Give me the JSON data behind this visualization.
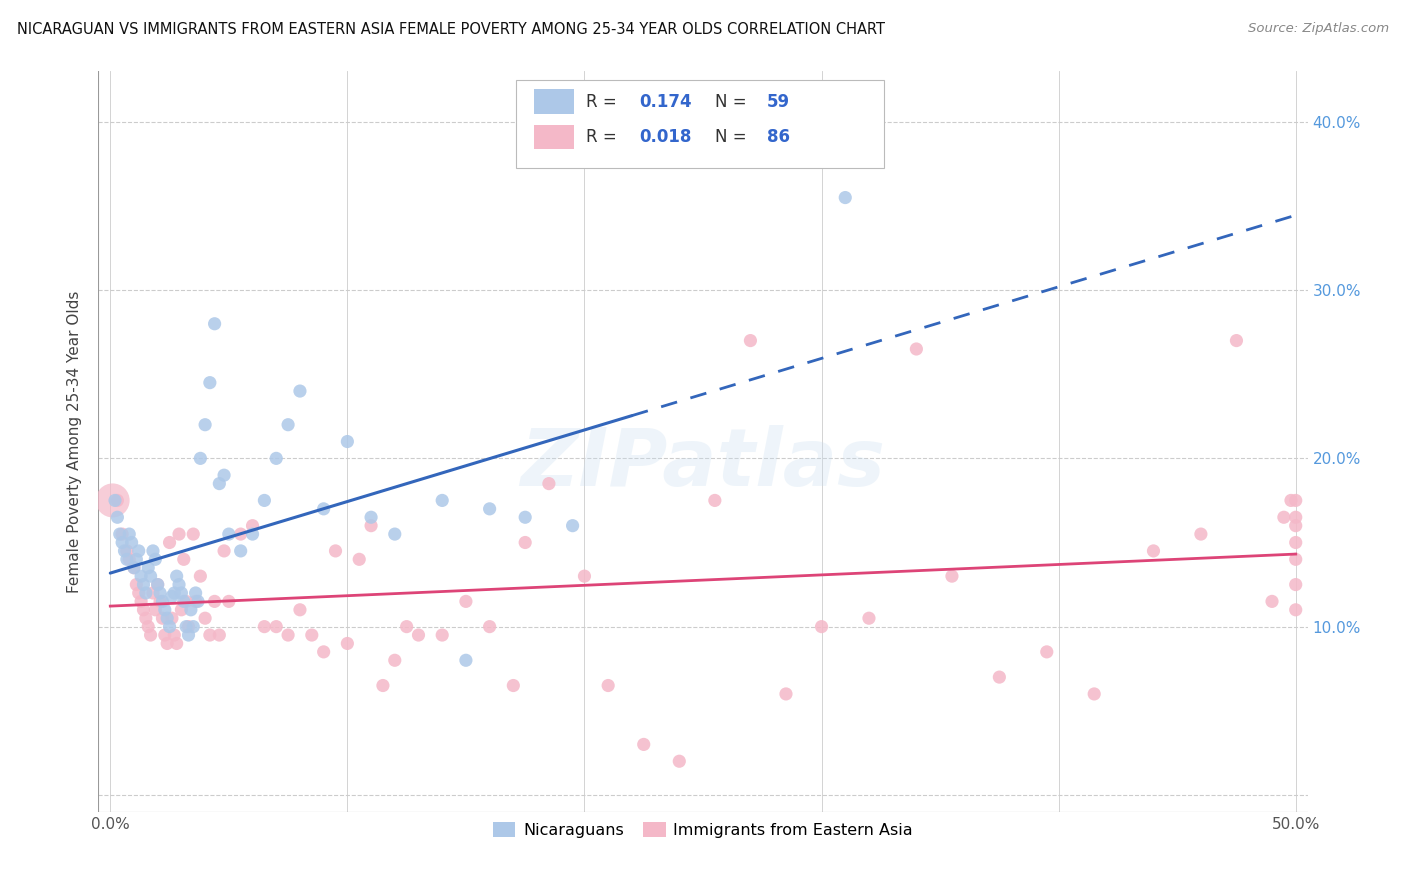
{
  "title": "NICARAGUAN VS IMMIGRANTS FROM EASTERN ASIA FEMALE POVERTY AMONG 25-34 YEAR OLDS CORRELATION CHART",
  "source": "Source: ZipAtlas.com",
  "ylabel": "Female Poverty Among 25-34 Year Olds",
  "xlim": [
    -0.005,
    0.505
  ],
  "ylim": [
    -0.01,
    0.43
  ],
  "xticks": [
    0.0,
    0.1,
    0.2,
    0.3,
    0.4,
    0.5
  ],
  "xticklabels_show": [
    "0.0%",
    "",
    "",
    "",
    "",
    "50.0%"
  ],
  "yticks": [
    0.0,
    0.1,
    0.2,
    0.3,
    0.4
  ],
  "yticklabels_right": [
    "",
    "10.0%",
    "20.0%",
    "30.0%",
    "40.0%"
  ],
  "blue_R": 0.174,
  "blue_N": 59,
  "pink_R": 0.018,
  "pink_N": 86,
  "blue_color": "#adc8e8",
  "pink_color": "#f4b8c8",
  "blue_line_color": "#3366bb",
  "pink_line_color": "#dd4477",
  "watermark": "ZIPatlas",
  "blue_scatter_x": [
    0.002,
    0.003,
    0.004,
    0.005,
    0.006,
    0.007,
    0.008,
    0.009,
    0.01,
    0.011,
    0.012,
    0.013,
    0.014,
    0.015,
    0.016,
    0.017,
    0.018,
    0.019,
    0.02,
    0.021,
    0.022,
    0.023,
    0.024,
    0.025,
    0.026,
    0.027,
    0.028,
    0.029,
    0.03,
    0.031,
    0.032,
    0.033,
    0.034,
    0.035,
    0.036,
    0.037,
    0.038,
    0.04,
    0.042,
    0.044,
    0.046,
    0.048,
    0.05,
    0.055,
    0.06,
    0.065,
    0.07,
    0.075,
    0.08,
    0.09,
    0.1,
    0.11,
    0.12,
    0.14,
    0.15,
    0.16,
    0.175,
    0.195,
    0.31
  ],
  "blue_scatter_y": [
    0.175,
    0.165,
    0.155,
    0.15,
    0.145,
    0.14,
    0.155,
    0.15,
    0.135,
    0.14,
    0.145,
    0.13,
    0.125,
    0.12,
    0.135,
    0.13,
    0.145,
    0.14,
    0.125,
    0.12,
    0.115,
    0.11,
    0.105,
    0.1,
    0.118,
    0.12,
    0.13,
    0.125,
    0.12,
    0.115,
    0.1,
    0.095,
    0.11,
    0.1,
    0.12,
    0.115,
    0.2,
    0.22,
    0.245,
    0.28,
    0.185,
    0.19,
    0.155,
    0.145,
    0.155,
    0.175,
    0.2,
    0.22,
    0.24,
    0.17,
    0.21,
    0.165,
    0.155,
    0.175,
    0.08,
    0.17,
    0.165,
    0.16,
    0.355
  ],
  "pink_scatter_x": [
    0.003,
    0.005,
    0.007,
    0.008,
    0.01,
    0.011,
    0.012,
    0.013,
    0.014,
    0.015,
    0.016,
    0.017,
    0.018,
    0.019,
    0.02,
    0.021,
    0.022,
    0.023,
    0.024,
    0.025,
    0.026,
    0.027,
    0.028,
    0.029,
    0.03,
    0.031,
    0.032,
    0.033,
    0.035,
    0.036,
    0.038,
    0.04,
    0.042,
    0.044,
    0.046,
    0.048,
    0.05,
    0.055,
    0.06,
    0.065,
    0.07,
    0.075,
    0.08,
    0.085,
    0.09,
    0.095,
    0.1,
    0.105,
    0.11,
    0.115,
    0.12,
    0.125,
    0.13,
    0.14,
    0.15,
    0.16,
    0.17,
    0.175,
    0.185,
    0.2,
    0.21,
    0.225,
    0.24,
    0.255,
    0.27,
    0.285,
    0.3,
    0.32,
    0.34,
    0.355,
    0.375,
    0.395,
    0.415,
    0.44,
    0.46,
    0.475,
    0.49,
    0.495,
    0.498,
    0.5,
    0.5,
    0.5,
    0.5,
    0.5,
    0.5,
    0.5
  ],
  "pink_scatter_y": [
    0.175,
    0.155,
    0.145,
    0.14,
    0.135,
    0.125,
    0.12,
    0.115,
    0.11,
    0.105,
    0.1,
    0.095,
    0.12,
    0.11,
    0.125,
    0.115,
    0.105,
    0.095,
    0.09,
    0.15,
    0.105,
    0.095,
    0.09,
    0.155,
    0.11,
    0.14,
    0.115,
    0.1,
    0.155,
    0.115,
    0.13,
    0.105,
    0.095,
    0.115,
    0.095,
    0.145,
    0.115,
    0.155,
    0.16,
    0.1,
    0.1,
    0.095,
    0.11,
    0.095,
    0.085,
    0.145,
    0.09,
    0.14,
    0.16,
    0.065,
    0.08,
    0.1,
    0.095,
    0.095,
    0.115,
    0.1,
    0.065,
    0.15,
    0.185,
    0.13,
    0.065,
    0.03,
    0.02,
    0.175,
    0.27,
    0.06,
    0.1,
    0.105,
    0.265,
    0.13,
    0.07,
    0.085,
    0.06,
    0.145,
    0.155,
    0.27,
    0.115,
    0.165,
    0.175,
    0.14,
    0.15,
    0.11,
    0.16,
    0.125,
    0.165,
    0.175
  ]
}
